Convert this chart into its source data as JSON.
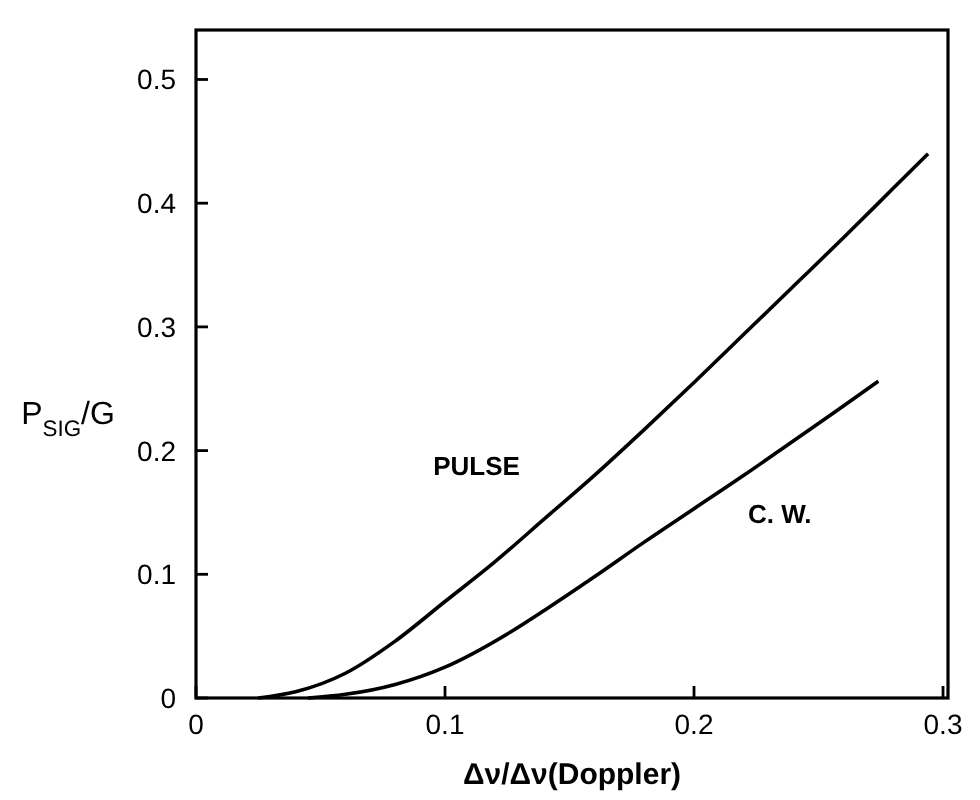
{
  "chart_data": {
    "type": "line",
    "xlabel": "Δν/Δν(Doppler)",
    "ylabel": "P$_{SIG}$/G",
    "xlim": [
      0,
      0.302
    ],
    "ylim": [
      0,
      0.54
    ],
    "xticks": [
      0,
      0.1,
      0.2,
      0.3
    ],
    "yticks": [
      0,
      0.1,
      0.2,
      0.3,
      0.4,
      0.5
    ],
    "grid": false,
    "marker": "none",
    "line_style": "solid",
    "series": [
      {
        "name": "PULSE",
        "color": "#000000",
        "x": [
          0.025,
          0.04,
          0.06,
          0.08,
          0.1,
          0.12,
          0.14,
          0.16,
          0.18,
          0.2,
          0.22,
          0.24,
          0.26,
          0.28,
          0.294
        ],
        "values": [
          0,
          0.005,
          0.02,
          0.046,
          0.078,
          0.11,
          0.145,
          0.18,
          0.217,
          0.255,
          0.294,
          0.333,
          0.372,
          0.412,
          0.44
        ]
      },
      {
        "name": "C. W.",
        "color": "#000000",
        "x": [
          0.045,
          0.06,
          0.08,
          0.1,
          0.126,
          0.14,
          0.16,
          0.18,
          0.2,
          0.22,
          0.24,
          0.26,
          0.274
        ],
        "values": [
          0,
          0.003,
          0.011,
          0.025,
          0.053,
          0.071,
          0.098,
          0.126,
          0.153,
          0.18,
          0.208,
          0.236,
          0.256
        ]
      }
    ]
  }
}
